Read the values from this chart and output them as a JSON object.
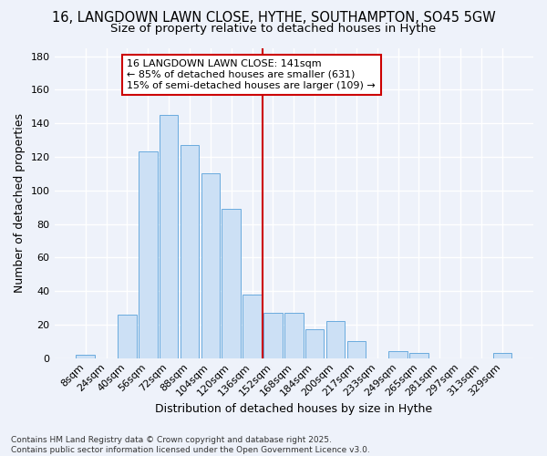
{
  "title_line1": "16, LANGDOWN LAWN CLOSE, HYTHE, SOUTHAMPTON, SO45 5GW",
  "title_line2": "Size of property relative to detached houses in Hythe",
  "xlabel": "Distribution of detached houses by size in Hythe",
  "ylabel": "Number of detached properties",
  "footer_line1": "Contains HM Land Registry data © Crown copyright and database right 2025.",
  "footer_line2": "Contains public sector information licensed under the Open Government Licence v3.0.",
  "categories": [
    "8sqm",
    "24sqm",
    "40sqm",
    "56sqm",
    "72sqm",
    "88sqm",
    "104sqm",
    "120sqm",
    "136sqm",
    "152sqm",
    "168sqm",
    "184sqm",
    "200sqm",
    "217sqm",
    "233sqm",
    "249sqm",
    "265sqm",
    "281sqm",
    "297sqm",
    "313sqm",
    "329sqm"
  ],
  "values": [
    2,
    0,
    26,
    123,
    145,
    127,
    110,
    89,
    38,
    27,
    27,
    17,
    22,
    10,
    0,
    4,
    3,
    0,
    0,
    0,
    3
  ],
  "bar_color": "#cce0f5",
  "bar_edge_color": "#6aabde",
  "vline_x_index": 8.5,
  "vline_color": "#cc0000",
  "annotation_text": "16 LANGDOWN LAWN CLOSE: 141sqm\n← 85% of detached houses are smaller (631)\n15% of semi-detached houses are larger (109) →",
  "annotation_box_color": "#cc0000",
  "annotation_text_color": "#000000",
  "ylim": [
    0,
    185
  ],
  "yticks": [
    0,
    20,
    40,
    60,
    80,
    100,
    120,
    140,
    160,
    180
  ],
  "bg_color": "#eef2fa",
  "grid_color": "#ffffff",
  "title_fontsize": 10.5,
  "subtitle_fontsize": 9.5,
  "axis_label_fontsize": 9,
  "tick_fontsize": 8,
  "footer_fontsize": 6.5,
  "annotation_fontsize": 8
}
